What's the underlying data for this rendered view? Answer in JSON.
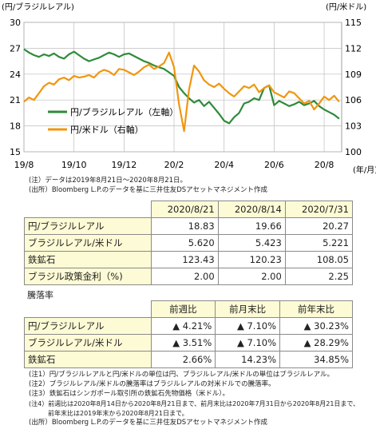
{
  "chart_data": {
    "type": "line",
    "left_axis_label": "(円/ブラジルレアル)",
    "right_axis_label": "(円/米ドル)",
    "x_unit": "(年/月)",
    "left_ticks": [
      "30",
      "27",
      "24",
      "21",
      "18",
      "15"
    ],
    "right_ticks": [
      "115",
      "112",
      "109",
      "106",
      "103",
      "100"
    ],
    "ylim_left": [
      15,
      30
    ],
    "ylim_right": [
      100,
      115
    ],
    "x_tick_labels": [
      "19/8",
      "19/10",
      "19/12",
      "20/2",
      "20/4",
      "20/6",
      "20/8"
    ],
    "x_tick_pos": [
      0,
      2,
      4,
      6,
      8,
      10,
      12
    ],
    "x_range": [
      0,
      12.7
    ],
    "grid": true,
    "legend_position": "lower-left",
    "series": [
      {
        "name": "円/ブラジルレアル（左軸）",
        "axis": "left",
        "color": "#2e8b3a",
        "x": [
          0,
          0.2,
          0.4,
          0.6,
          0.8,
          1.0,
          1.2,
          1.4,
          1.6,
          1.8,
          2.0,
          2.2,
          2.4,
          2.6,
          2.8,
          3.0,
          3.2,
          3.4,
          3.6,
          3.8,
          4.0,
          4.2,
          4.4,
          4.6,
          4.8,
          5.0,
          5.2,
          5.4,
          5.6,
          5.8,
          6.0,
          6.2,
          6.4,
          6.6,
          6.8,
          7.0,
          7.2,
          7.4,
          7.6,
          7.8,
          8.0,
          8.2,
          8.4,
          8.6,
          8.8,
          9.0,
          9.2,
          9.4,
          9.6,
          9.8,
          10.0,
          10.2,
          10.4,
          10.6,
          10.8,
          11.0,
          11.2,
          11.4,
          11.6,
          11.8,
          12.0,
          12.2,
          12.4,
          12.6
        ],
        "values": [
          26.9,
          26.5,
          26.2,
          26.0,
          26.3,
          26.1,
          26.4,
          26.0,
          25.8,
          26.3,
          26.6,
          26.2,
          25.8,
          25.5,
          25.7,
          25.9,
          26.2,
          26.5,
          26.3,
          26.0,
          26.3,
          26.4,
          26.1,
          25.8,
          25.5,
          25.3,
          25.0,
          24.8,
          24.6,
          24.2,
          23.8,
          22.5,
          21.8,
          21.2,
          20.7,
          21.0,
          20.3,
          20.8,
          20.1,
          19.4,
          18.6,
          18.3,
          19.0,
          19.5,
          20.6,
          20.8,
          21.2,
          21.0,
          22.4,
          22.7,
          20.4,
          20.9,
          20.6,
          20.3,
          20.5,
          20.8,
          20.4,
          20.6,
          20.9,
          20.3,
          19.9,
          19.6,
          19.3,
          18.83
        ]
      },
      {
        "name": "円/米ドル（右軸）",
        "axis": "right",
        "color": "#f0960e",
        "x": [
          0,
          0.2,
          0.4,
          0.6,
          0.8,
          1.0,
          1.2,
          1.4,
          1.6,
          1.8,
          2.0,
          2.2,
          2.4,
          2.6,
          2.8,
          3.0,
          3.2,
          3.4,
          3.6,
          3.8,
          4.0,
          4.2,
          4.4,
          4.6,
          4.8,
          5.0,
          5.2,
          5.4,
          5.6,
          5.8,
          6.0,
          6.2,
          6.4,
          6.6,
          6.8,
          7.0,
          7.2,
          7.4,
          7.6,
          7.8,
          8.0,
          8.2,
          8.4,
          8.6,
          8.8,
          9.0,
          9.2,
          9.4,
          9.6,
          9.8,
          10.0,
          10.2,
          10.4,
          10.6,
          10.8,
          11.0,
          11.2,
          11.4,
          11.6,
          11.8,
          12.0,
          12.2,
          12.4,
          12.6
        ],
        "values": [
          105.8,
          106.3,
          106.0,
          106.8,
          107.6,
          108.0,
          107.8,
          108.4,
          108.6,
          108.3,
          108.8,
          108.6,
          108.7,
          108.9,
          108.6,
          109.2,
          109.5,
          109.3,
          108.9,
          109.6,
          109.5,
          109.2,
          108.9,
          109.3,
          109.8,
          110.1,
          109.6,
          109.9,
          110.3,
          111.5,
          109.8,
          105.5,
          102.4,
          107.2,
          110.0,
          109.3,
          108.3,
          107.8,
          107.5,
          107.9,
          107.3,
          106.8,
          106.4,
          107.0,
          107.6,
          107.4,
          107.8,
          106.9,
          107.4,
          107.7,
          106.9,
          106.6,
          106.3,
          107.0,
          106.8,
          106.2,
          105.6,
          105.9,
          104.9,
          105.6,
          106.4,
          106.0,
          106.5,
          105.8
        ]
      }
    ]
  },
  "notes": {
    "chart_note1": "(注）データは2019年8月21日～2020年8月21日。",
    "chart_note2": "(出所）Bloomberg L.P.のデータを基に三井住友DSアセットマネジメント作成",
    "footer1": "(注1）円/ブラジルレアルと円/米ドルの単位は円、ブラジルレアル/米ドルの単位はブラジルレアル。",
    "footer2": "(注2）ブラジルレアル/米ドルの騰落率はブラジルレアルの対米ドルでの騰落率。",
    "footer3": "(注3）鉄鉱石はシンガポール取引所の鉄鉱石先物価格（米ドル）。",
    "footer4": "(注4）前週比は2020年8月14日から2020年8月21日まで、前月末比は2020年7月31日から2020年8月21日まで、",
    "footer5": "　　　前年末比は2019年末から2020年8月21日まで。",
    "footer6": "(出所）Bloomberg L.P.のデータを基に三井住友DSアセットマネジメント作成"
  },
  "table_levels": {
    "headers": [
      "2020/8/21",
      "2020/8/14",
      "2020/7/31"
    ],
    "rows": [
      {
        "label": "円/ブラジルレアル",
        "values": [
          "18.83",
          "19.66",
          "20.27"
        ]
      },
      {
        "label": "ブラジルレアル/米ドル",
        "values": [
          "5.620",
          "5.423",
          "5.221"
        ]
      },
      {
        "label": "鉄鉱石",
        "values": [
          "123.43",
          "120.23",
          "108.05"
        ]
      },
      {
        "label": "ブラジル政策金利（%)",
        "values": [
          "2.00",
          "2.00",
          "2.25"
        ]
      }
    ]
  },
  "table_changes": {
    "title": "騰落率",
    "headers": [
      "前週比",
      "前月末比",
      "前年末比"
    ],
    "rows": [
      {
        "label": "円/ブラジルレアル",
        "values": [
          "▲ 4.21%",
          "▲ 7.10%",
          "▲ 30.23%"
        ]
      },
      {
        "label": "ブラジルレアル/米ドル",
        "values": [
          "▲ 3.51%",
          "▲ 7.10%",
          "▲ 28.29%"
        ]
      },
      {
        "label": "鉄鉱石",
        "values": [
          "2.66%",
          "14.23%",
          "34.85%"
        ]
      }
    ]
  }
}
